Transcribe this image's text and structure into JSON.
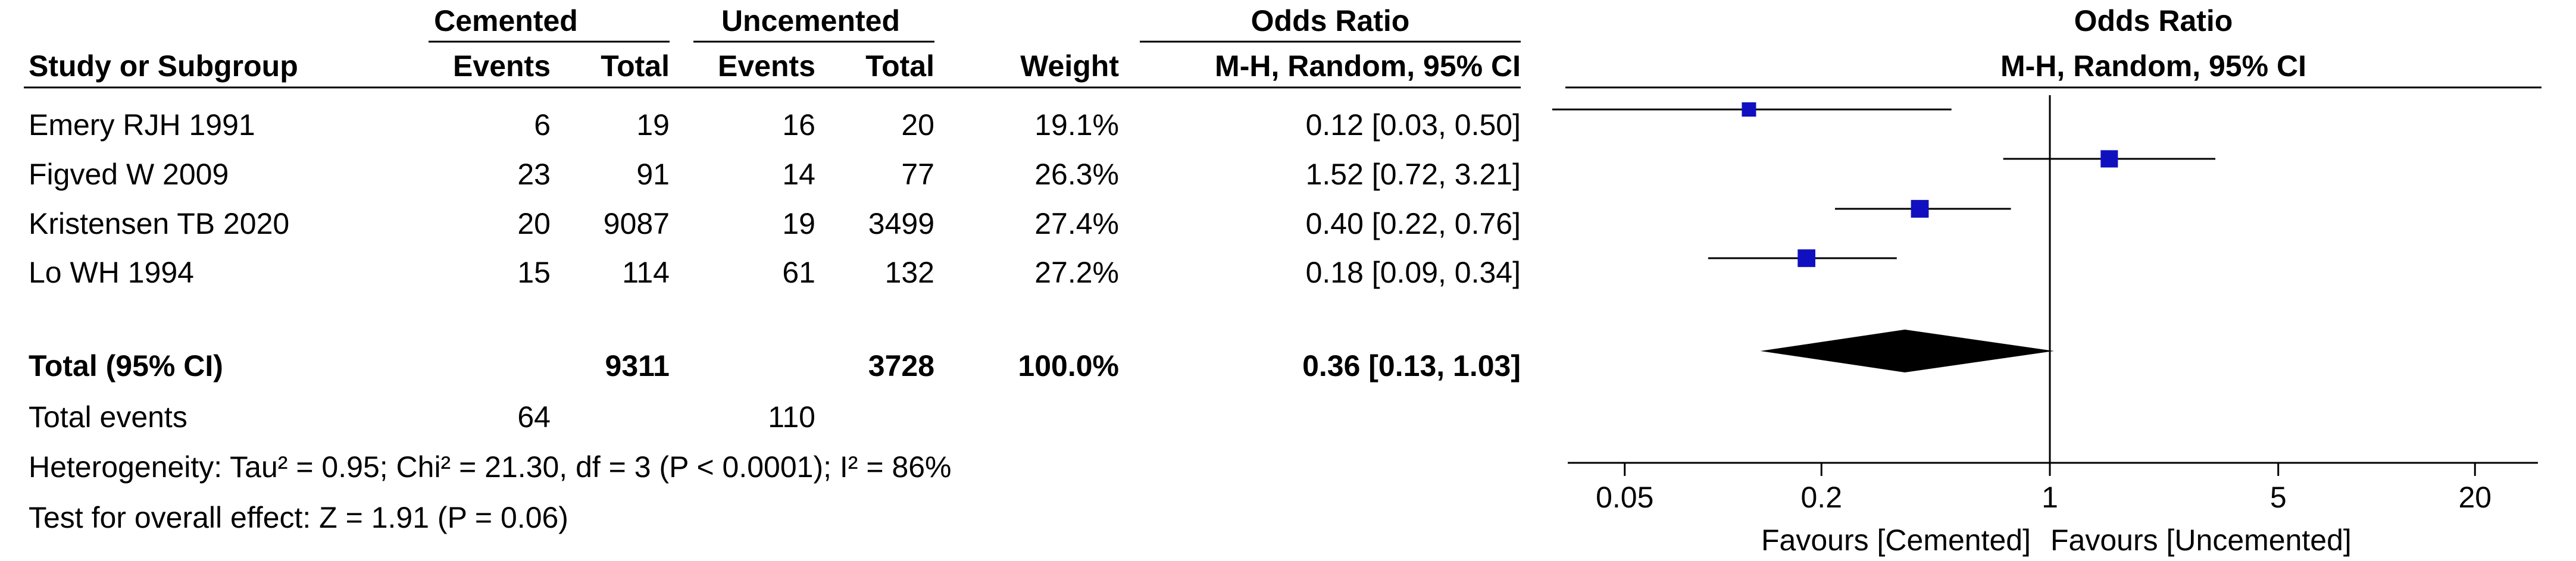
{
  "chart_data": {
    "type": "forest",
    "group_headers": {
      "cemented": "Cemented",
      "uncemented": "Uncemented",
      "odds_ratio_table": "Odds Ratio",
      "odds_ratio_plot": "Odds Ratio"
    },
    "column_headers": {
      "study": "Study or Subgroup",
      "cem_events": "Events",
      "cem_total": "Total",
      "unc_events": "Events",
      "unc_total": "Total",
      "weight": "Weight",
      "method": "M-H, Random, 95% CI",
      "plot_method": "M-H, Random, 95% CI"
    },
    "studies": [
      {
        "name": "Emery RJH 1991",
        "cem_events": "6",
        "cem_total": "19",
        "unc_events": "16",
        "unc_total": "20",
        "weight": "19.1%",
        "ci_text": "0.12 [0.03, 0.50]",
        "or": 0.12,
        "lower": 0.03,
        "upper": 0.5
      },
      {
        "name": "Figved W 2009",
        "cem_events": "23",
        "cem_total": "91",
        "unc_events": "14",
        "unc_total": "77",
        "weight": "26.3%",
        "ci_text": "1.52 [0.72, 3.21]",
        "or": 1.52,
        "lower": 0.72,
        "upper": 3.21
      },
      {
        "name": "Kristensen TB 2020",
        "cem_events": "20",
        "cem_total": "9087",
        "unc_events": "19",
        "unc_total": "3499",
        "weight": "27.4%",
        "ci_text": "0.40 [0.22, 0.76]",
        "or": 0.4,
        "lower": 0.22,
        "upper": 0.76
      },
      {
        "name": "Lo WH 1994",
        "cem_events": "15",
        "cem_total": "114",
        "unc_events": "61",
        "unc_total": "132",
        "weight": "27.2%",
        "ci_text": "0.18 [0.09, 0.34]",
        "or": 0.18,
        "lower": 0.09,
        "upper": 0.34
      }
    ],
    "total": {
      "label": "Total (95% CI)",
      "cem_total": "9311",
      "unc_total": "3728",
      "weight": "100.0%",
      "ci_text": "0.36 [0.13, 1.03]",
      "or": 0.36,
      "lower": 0.13,
      "upper": 1.03
    },
    "total_events": {
      "label": "Total events",
      "cem_events": "64",
      "unc_events": "110"
    },
    "heterogeneity": "Heterogeneity: Tau² = 0.95; Chi² = 21.30, df = 3 (P < 0.0001); I² = 86%",
    "overall_effect": "Test for overall effect: Z = 1.91 (P = 0.06)",
    "x_axis": {
      "scale": "log",
      "range": [
        0.03,
        40
      ],
      "ticks": [
        0.05,
        0.2,
        1,
        5,
        20
      ],
      "tick_labels": [
        "0.05",
        "0.2",
        "1",
        "5",
        "20"
      ]
    },
    "favours_left": "Favours [Cemented]",
    "favours_right": "Favours [Uncemented]",
    "colors": {
      "marker": "#1010c0",
      "diamond": "#000000",
      "line": "#000000"
    }
  }
}
